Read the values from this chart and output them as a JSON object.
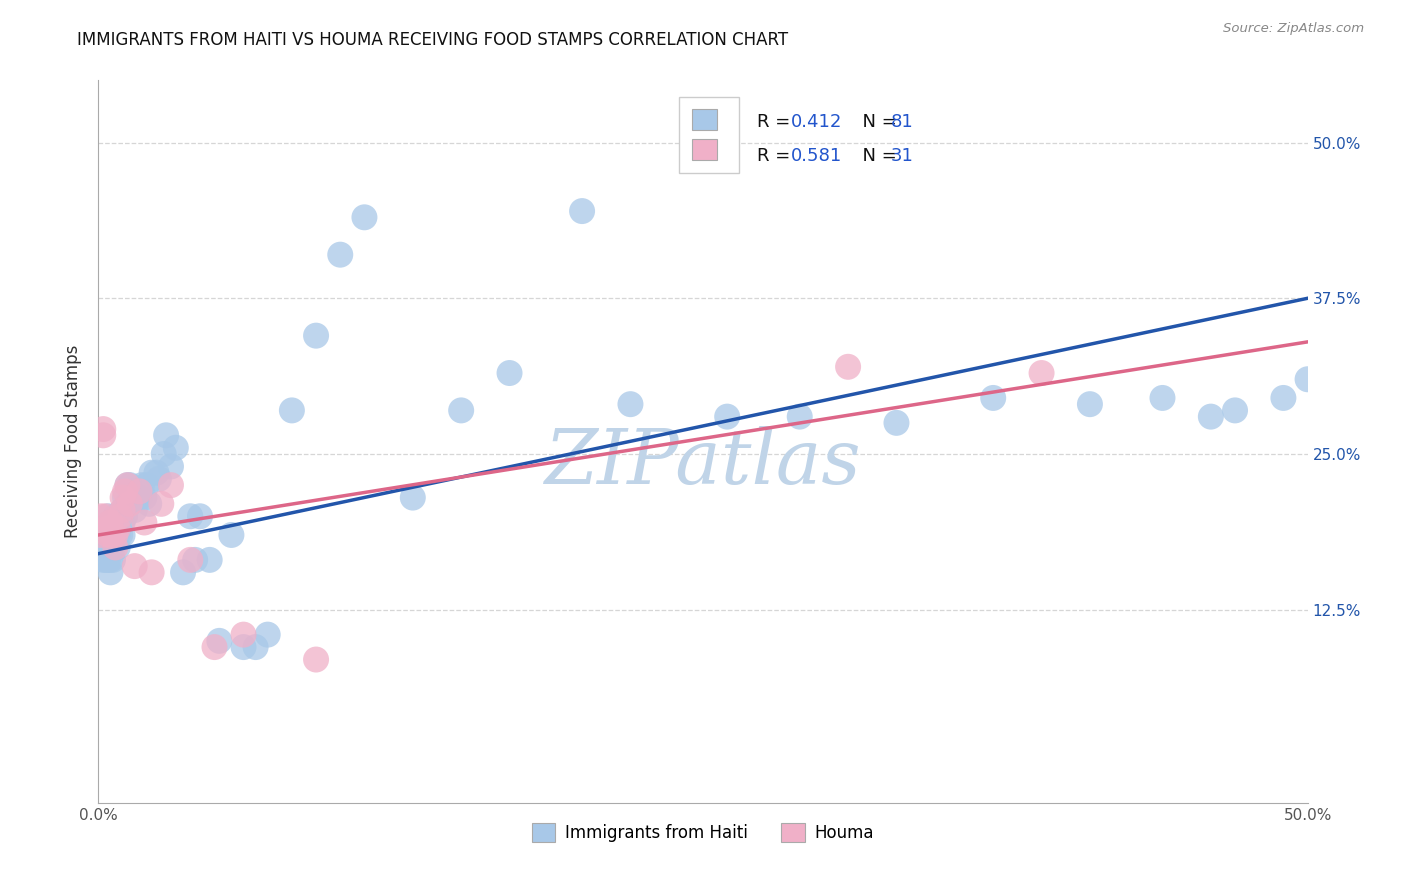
{
  "title": "IMMIGRANTS FROM HAITI VS HOUMA RECEIVING FOOD STAMPS CORRELATION CHART",
  "source": "Source: ZipAtlas.com",
  "ylabel": "Receiving Food Stamps",
  "xlim": [
    0.0,
    0.5
  ],
  "ylim": [
    -0.03,
    0.55
  ],
  "legend_r_haiti": "R = 0.412",
  "legend_n_haiti": "N = 81",
  "legend_r_houma": "R = 0.581",
  "legend_n_houma": "N = 31",
  "color_haiti": "#a8c8e8",
  "color_houma": "#f0b0c8",
  "color_haiti_line": "#2255aa",
  "color_houma_line": "#dd6688",
  "color_r_value": "#2255cc",
  "color_n_value": "#2255cc",
  "watermark": "ZIPatlas",
  "watermark_color": "#c0d4e8",
  "background_color": "#ffffff",
  "grid_color": "#cccccc",
  "haiti_line_x": [
    0.0,
    0.5
  ],
  "haiti_line_y": [
    0.17,
    0.375
  ],
  "houma_line_x": [
    0.0,
    0.5
  ],
  "houma_line_y": [
    0.185,
    0.34
  ],
  "haiti_x": [
    0.001,
    0.001,
    0.002,
    0.002,
    0.002,
    0.003,
    0.003,
    0.003,
    0.004,
    0.004,
    0.004,
    0.004,
    0.005,
    0.005,
    0.005,
    0.005,
    0.006,
    0.006,
    0.006,
    0.007,
    0.007,
    0.007,
    0.008,
    0.008,
    0.008,
    0.009,
    0.009,
    0.01,
    0.01,
    0.01,
    0.011,
    0.011,
    0.012,
    0.012,
    0.013,
    0.013,
    0.014,
    0.015,
    0.015,
    0.016,
    0.017,
    0.018,
    0.019,
    0.02,
    0.021,
    0.022,
    0.024,
    0.025,
    0.027,
    0.028,
    0.03,
    0.032,
    0.035,
    0.038,
    0.04,
    0.042,
    0.046,
    0.05,
    0.055,
    0.06,
    0.065,
    0.07,
    0.08,
    0.09,
    0.1,
    0.11,
    0.13,
    0.15,
    0.17,
    0.2,
    0.22,
    0.26,
    0.29,
    0.33,
    0.37,
    0.41,
    0.44,
    0.46,
    0.47,
    0.49,
    0.5
  ],
  "haiti_y": [
    0.185,
    0.175,
    0.185,
    0.175,
    0.165,
    0.185,
    0.175,
    0.165,
    0.185,
    0.2,
    0.185,
    0.165,
    0.185,
    0.175,
    0.165,
    0.155,
    0.185,
    0.175,
    0.165,
    0.2,
    0.195,
    0.19,
    0.2,
    0.185,
    0.175,
    0.2,
    0.185,
    0.205,
    0.195,
    0.185,
    0.215,
    0.2,
    0.225,
    0.21,
    0.225,
    0.21,
    0.22,
    0.215,
    0.205,
    0.215,
    0.215,
    0.225,
    0.215,
    0.225,
    0.21,
    0.235,
    0.235,
    0.23,
    0.25,
    0.265,
    0.24,
    0.255,
    0.155,
    0.2,
    0.165,
    0.2,
    0.165,
    0.1,
    0.185,
    0.095,
    0.095,
    0.105,
    0.285,
    0.345,
    0.41,
    0.44,
    0.215,
    0.285,
    0.315,
    0.445,
    0.29,
    0.28,
    0.28,
    0.275,
    0.295,
    0.29,
    0.295,
    0.28,
    0.285,
    0.295,
    0.31
  ],
  "houma_x": [
    0.001,
    0.001,
    0.002,
    0.002,
    0.003,
    0.004,
    0.004,
    0.005,
    0.005,
    0.006,
    0.007,
    0.007,
    0.008,
    0.009,
    0.01,
    0.01,
    0.011,
    0.012,
    0.013,
    0.015,
    0.017,
    0.019,
    0.022,
    0.026,
    0.03,
    0.038,
    0.048,
    0.06,
    0.09,
    0.31,
    0.39
  ],
  "houma_y": [
    0.2,
    0.185,
    0.27,
    0.265,
    0.2,
    0.19,
    0.185,
    0.195,
    0.185,
    0.185,
    0.185,
    0.175,
    0.19,
    0.2,
    0.215,
    0.205,
    0.22,
    0.225,
    0.21,
    0.16,
    0.22,
    0.195,
    0.155,
    0.21,
    0.225,
    0.165,
    0.095,
    0.105,
    0.085,
    0.32,
    0.315
  ],
  "y_ticks": [
    0.125,
    0.25,
    0.375,
    0.5
  ],
  "y_tick_labels": [
    "12.5%",
    "25.0%",
    "37.5%",
    "50.0%"
  ]
}
